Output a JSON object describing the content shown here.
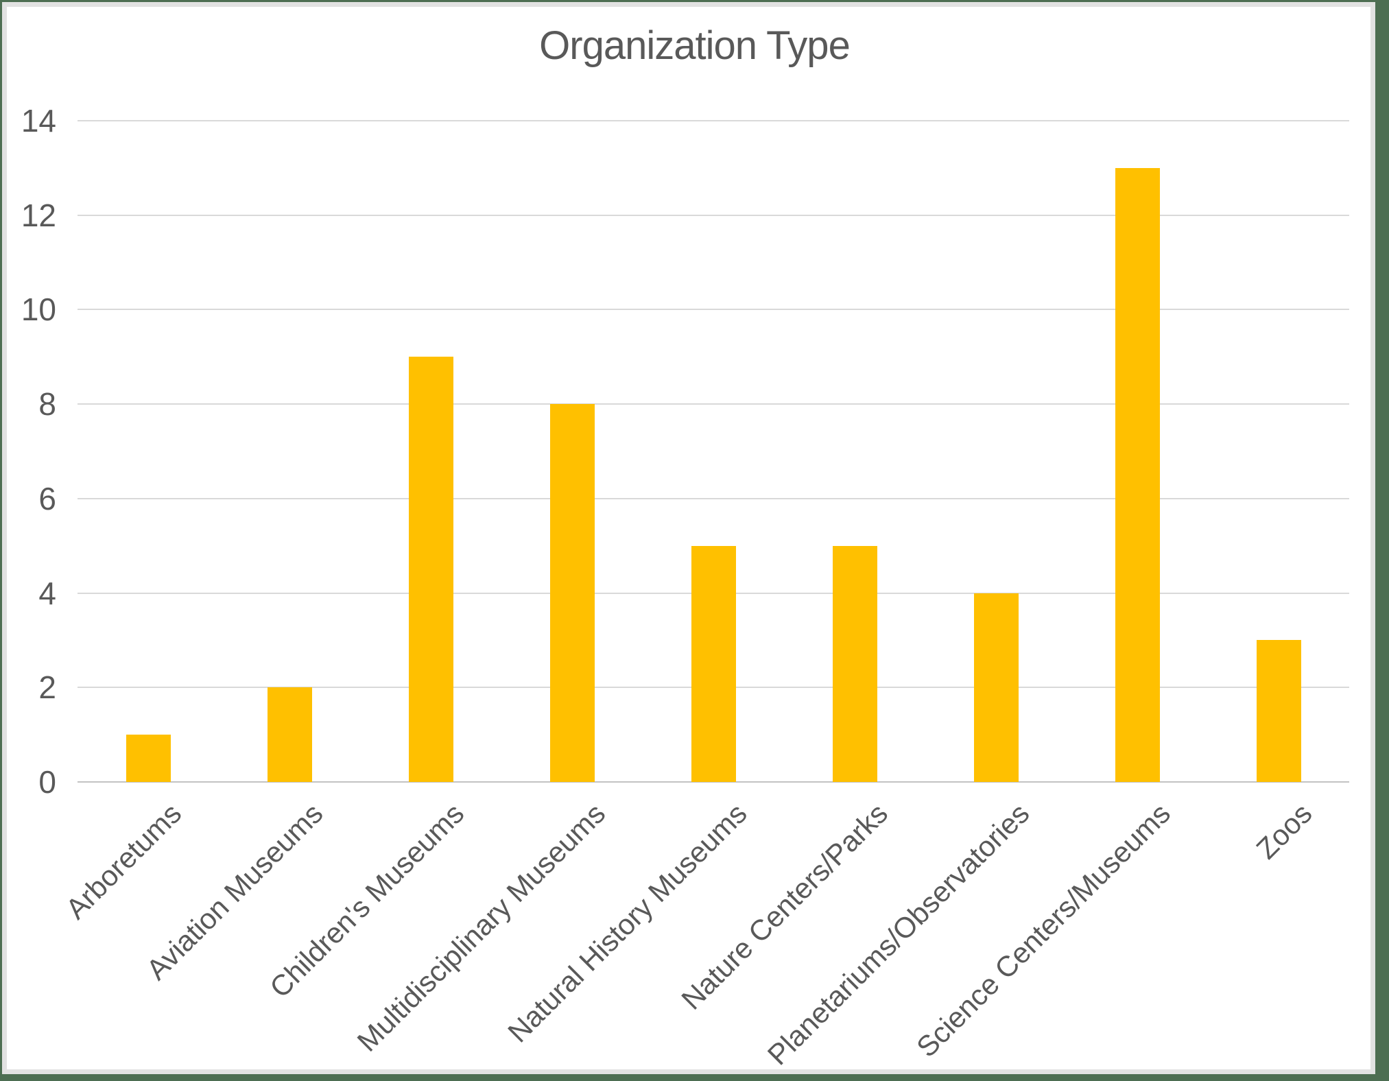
{
  "page": {
    "surround_color": "#4D6E52",
    "frame_border_color": "#E2E2E2",
    "frame_fill_color": "#FFFFFF"
  },
  "chart_data": {
    "type": "bar",
    "title": "Organization Type",
    "categories": [
      "Arboretums",
      "Aviation Museums",
      "Children's Museums",
      "Multidisciplinary Museums",
      "Natural History Museums",
      "Nature Centers/Parks",
      "Planetariums/Observatories",
      "Science Centers/Museums",
      "Zoos"
    ],
    "values": [
      1,
      2,
      9,
      8,
      5,
      5,
      4,
      13,
      3
    ],
    "xlabel": "",
    "ylabel": "",
    "ylim": [
      0,
      14
    ],
    "yticks": [
      0,
      2,
      4,
      6,
      8,
      10,
      12,
      14
    ],
    "grid": true,
    "legend": "none",
    "x_label_rotation_deg": 45,
    "bar_color": "#FFC000",
    "gridline_color": "#D9D9D9",
    "axis_line_color": "#C3C3C3",
    "text_color": "#595959"
  }
}
